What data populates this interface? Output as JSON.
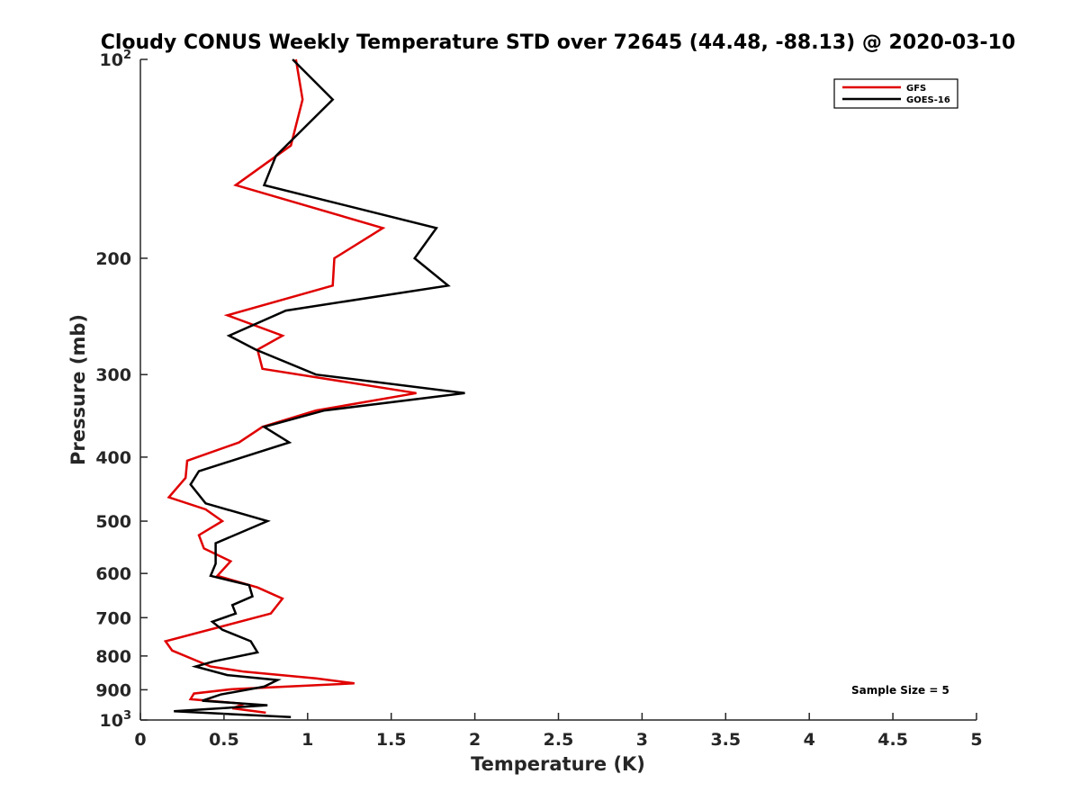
{
  "chart_data": {
    "type": "line",
    "title": "Cloudy CONUS Weekly Temperature STD over 72645 (44.48, -88.13) @ 2020-03-10",
    "xlabel": "Temperature (K)",
    "ylabel": "Pressure (mb)",
    "xlim": [
      0,
      5
    ],
    "ylim": [
      100,
      1000
    ],
    "yscale": "log",
    "y_reversed": true,
    "x_ticks": [
      "0",
      "0.5",
      "1",
      "1.5",
      "2",
      "2.5",
      "3",
      "3.5",
      "4",
      "4.5",
      "5"
    ],
    "y_ticks": [
      {
        "value": 100,
        "base": "10",
        "exp": "2"
      },
      {
        "value": 200,
        "label": "200"
      },
      {
        "value": 300,
        "label": "300"
      },
      {
        "value": 400,
        "label": "400"
      },
      {
        "value": 500,
        "label": "500"
      },
      {
        "value": 600,
        "label": "600"
      },
      {
        "value": 700,
        "label": "700"
      },
      {
        "value": 800,
        "label": "800"
      },
      {
        "value": 900,
        "label": "900"
      },
      {
        "value": 1000,
        "base": "10",
        "exp": "3"
      }
    ],
    "grid": false,
    "legend_position": "top-right",
    "annotation": "Sample Size = 5",
    "series": [
      {
        "name": "GFS",
        "color": "#e00000",
        "points": [
          [
            0.93,
            100
          ],
          [
            0.97,
            115
          ],
          [
            0.9,
            135
          ],
          [
            0.57,
            155
          ],
          [
            1.45,
            180
          ],
          [
            1.16,
            200
          ],
          [
            1.15,
            220
          ],
          [
            0.52,
            244
          ],
          [
            0.85,
            262
          ],
          [
            0.7,
            275
          ],
          [
            0.73,
            294
          ],
          [
            1.65,
            320
          ],
          [
            1.05,
            340
          ],
          [
            0.73,
            360
          ],
          [
            0.59,
            380
          ],
          [
            0.28,
            405
          ],
          [
            0.27,
            430
          ],
          [
            0.17,
            460
          ],
          [
            0.39,
            480
          ],
          [
            0.49,
            500
          ],
          [
            0.35,
            525
          ],
          [
            0.38,
            550
          ],
          [
            0.54,
            575
          ],
          [
            0.46,
            605
          ],
          [
            0.7,
            630
          ],
          [
            0.85,
            655
          ],
          [
            0.78,
            690
          ],
          [
            0.15,
            760
          ],
          [
            0.19,
            785
          ],
          [
            0.42,
            830
          ],
          [
            0.62,
            845
          ],
          [
            1.05,
            865
          ],
          [
            1.28,
            880
          ],
          [
            0.55,
            898
          ],
          [
            0.32,
            912
          ],
          [
            0.3,
            930
          ],
          [
            0.62,
            945
          ],
          [
            0.55,
            960
          ],
          [
            0.75,
            975
          ]
        ]
      },
      {
        "name": "GOES-16",
        "color": "#000000",
        "points": [
          [
            0.91,
            100
          ],
          [
            1.15,
            115
          ],
          [
            0.81,
            140
          ],
          [
            0.74,
            155
          ],
          [
            1.77,
            180
          ],
          [
            1.64,
            200
          ],
          [
            1.84,
            220
          ],
          [
            0.87,
            240
          ],
          [
            0.53,
            262
          ],
          [
            0.69,
            275
          ],
          [
            1.05,
            300
          ],
          [
            1.94,
            320
          ],
          [
            1.1,
            340
          ],
          [
            0.74,
            360
          ],
          [
            0.89,
            380
          ],
          [
            0.35,
            420
          ],
          [
            0.3,
            440
          ],
          [
            0.39,
            470
          ],
          [
            0.64,
            490
          ],
          [
            0.76,
            500
          ],
          [
            0.45,
            540
          ],
          [
            0.45,
            580
          ],
          [
            0.42,
            605
          ],
          [
            0.65,
            625
          ],
          [
            0.67,
            650
          ],
          [
            0.55,
            670
          ],
          [
            0.57,
            690
          ],
          [
            0.43,
            710
          ],
          [
            0.49,
            730
          ],
          [
            0.66,
            760
          ],
          [
            0.7,
            790
          ],
          [
            0.44,
            815
          ],
          [
            0.33,
            830
          ],
          [
            0.52,
            855
          ],
          [
            0.82,
            870
          ],
          [
            0.74,
            890
          ],
          [
            0.48,
            915
          ],
          [
            0.37,
            935
          ],
          [
            0.76,
            950
          ],
          [
            0.2,
            970
          ],
          [
            0.9,
            990
          ]
        ]
      }
    ]
  }
}
